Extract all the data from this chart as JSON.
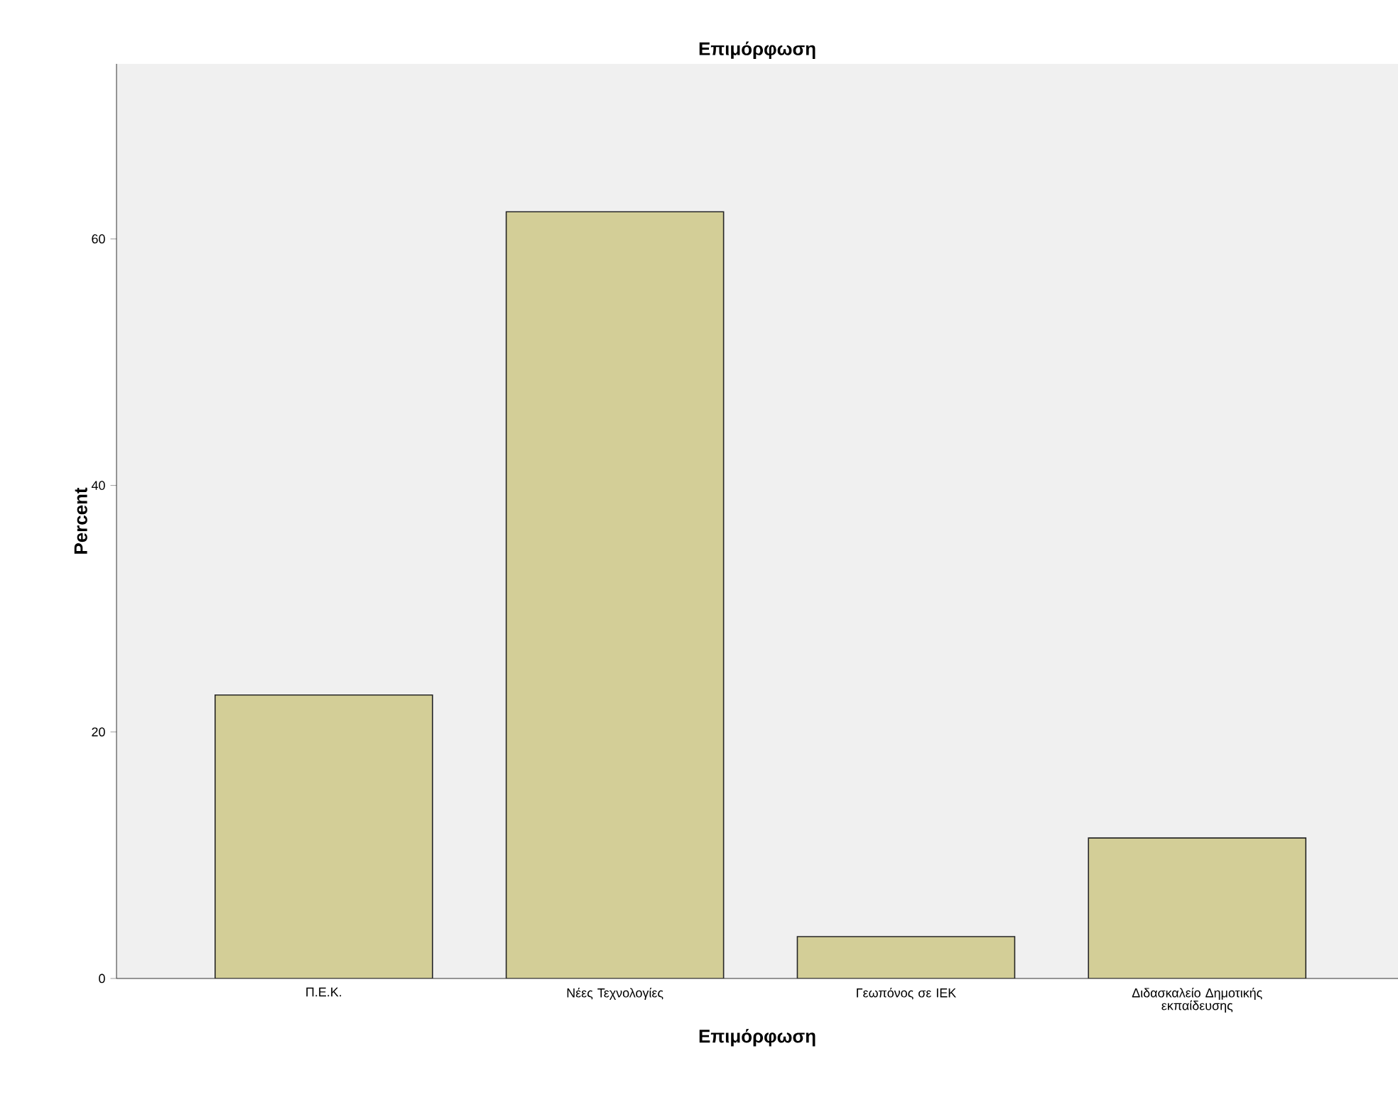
{
  "chart_data": {
    "type": "bar",
    "title": "Επιμόρφωση",
    "xlabel": "Επιμόρφωση",
    "ylabel": "Percent",
    "categories": [
      "Π.Ε.Κ.",
      "Νέες Τεχνολογίες",
      "Γεωπόνος σε ΙΕΚ",
      "Διδασκαλείο Δημοτικής εκπαίδευσης"
    ],
    "values": [
      23.0,
      62.2,
      3.4,
      11.4
    ],
    "color": "#d3ce97",
    "ylim": [
      0,
      74.2
    ],
    "yticks": [
      0,
      20,
      40,
      60
    ],
    "grid": false
  }
}
